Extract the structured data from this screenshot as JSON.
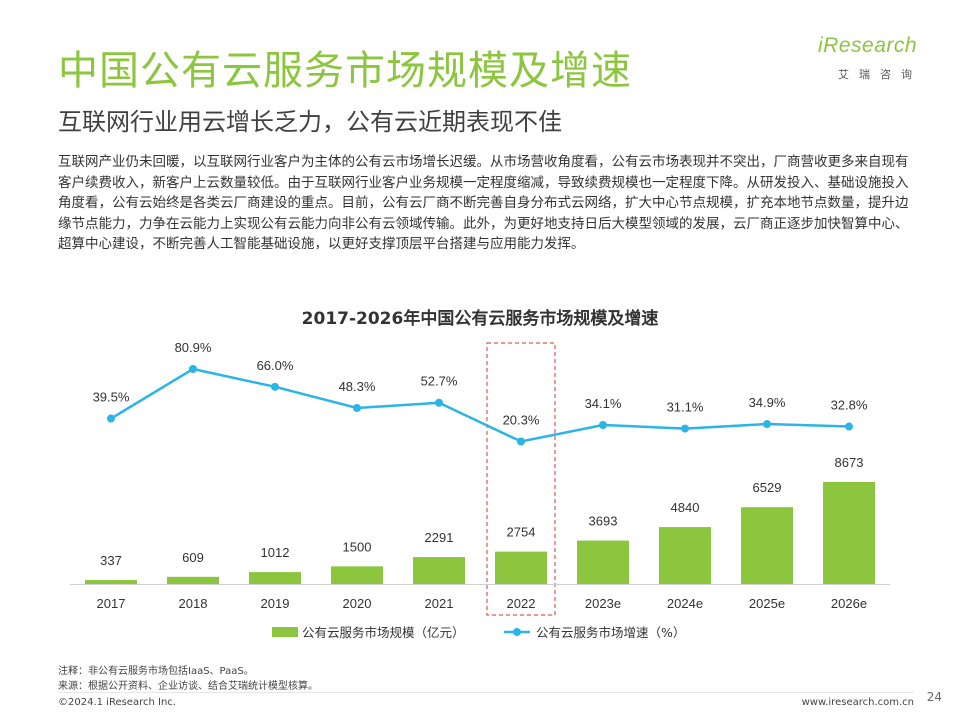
{
  "header": {
    "title": "中国公有云服务市场规模及增速",
    "subtitle": "互联网行业用云增长乏力，公有云近期表现不佳"
  },
  "logo": {
    "word": "iResearch",
    "cn": "艾瑞咨询"
  },
  "body_text": "互联网产业仍未回暖，以互联网行业客户为主体的公有云市场增长迟缓。从市场营收角度看，公有云市场表现并不突出，厂商营收更多来自现有客户续费收入，新客户上云数量较低。由于互联网行业客户业务规模一定程度缩减，导致续费规模也一定程度下降。从研发投入、基础设施投入角度看，公有云始终是各类云厂商建设的重点。目前，公有云厂商不断完善自身分布式云网络，扩大中心节点规模，扩充本地节点数量，提升边缘节点能力，力争在云能力上实现公有云能力向非公有云领域传输。此外，为更好地支持日后大模型领域的发展，云厂商正逐步加快智算中心、超算中心建设，不断完善人工智能基础设施，以更好支撑顶层平台搭建与应用能力发挥。",
  "chart_data": {
    "type": "bar",
    "title": "2017-2026年中国公有云服务市场规模及增速",
    "categories": [
      "2017",
      "2018",
      "2019",
      "2020",
      "2021",
      "2022",
      "2023e",
      "2024e",
      "2025e",
      "2026e"
    ],
    "series": [
      {
        "name": "公有云服务市场规模（亿元）",
        "type": "bar",
        "color": "#8cc63f",
        "values": [
          337,
          609,
          1012,
          1500,
          2291,
          2754,
          3693,
          4840,
          6529,
          8673
        ],
        "labels": [
          "337",
          "609",
          "1012",
          "1500",
          "2291",
          "2754",
          "3693",
          "4840",
          "6529",
          "8673"
        ]
      },
      {
        "name": "公有云服务市场增速（%）",
        "type": "line",
        "color": "#2ab4e8",
        "values": [
          39.5,
          80.9,
          66.0,
          48.3,
          52.7,
          20.3,
          34.1,
          31.1,
          34.9,
          32.8
        ],
        "labels": [
          "39.5%",
          "80.9%",
          "66.0%",
          "48.3%",
          "52.7%",
          "20.3%",
          "34.1%",
          "31.1%",
          "34.9%",
          "32.8%"
        ]
      }
    ],
    "highlight_category": "2022",
    "highlight_color": "#e05a4e",
    "legend": "bottom"
  },
  "footer": {
    "note": "注释：非公有云服务市场包括IaaS、PaaS。",
    "source": "来源：根据公开资料、企业访谈、结合艾瑞统计模型核算。",
    "copyright": "©2024.1 iResearch Inc.",
    "site": "www.iresearch.com.cn",
    "page": "24"
  }
}
